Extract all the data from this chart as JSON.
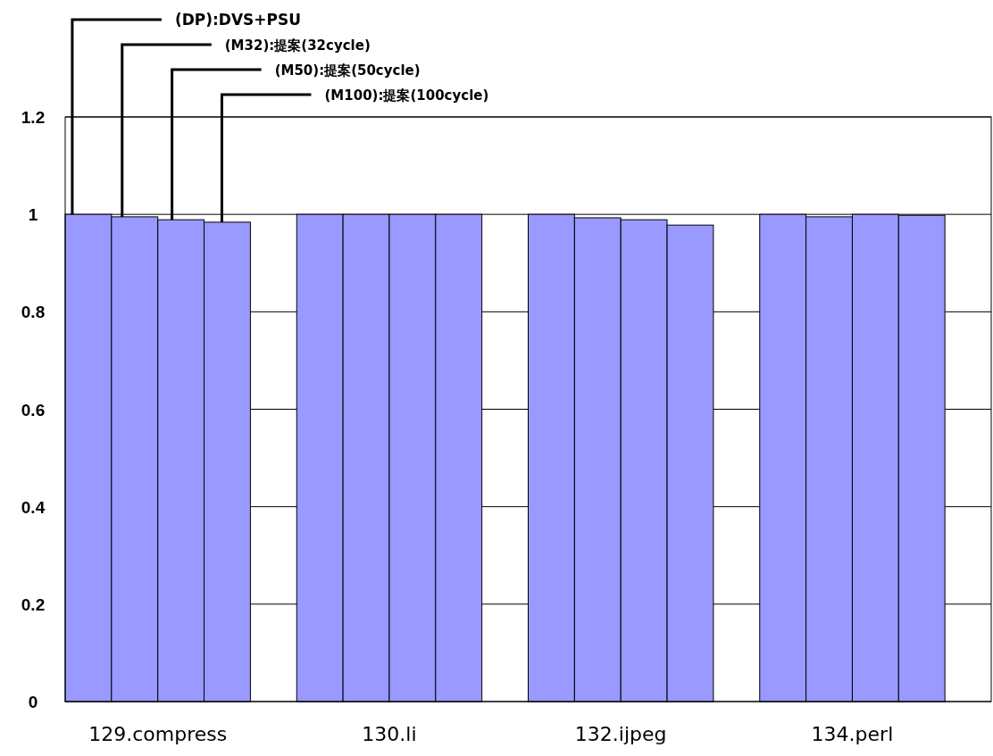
{
  "chart_data": {
    "type": "bar",
    "categories": [
      "129.compress",
      "130.li",
      "132.ijpeg",
      "134.perl"
    ],
    "series": [
      {
        "name": "(DP):DVS+PSU",
        "color": "#9999ff",
        "values": [
          1.0,
          1.0,
          1.0,
          1.0
        ]
      },
      {
        "name": "(M32):提案(32cycle)",
        "color": "#9999ff",
        "values": [
          0.995,
          1.0,
          0.993,
          0.995
        ]
      },
      {
        "name": "(M50):提案(50cycle)",
        "color": "#9999ff",
        "values": [
          0.989,
          1.0,
          0.989,
          1.0
        ]
      },
      {
        "name": "(M100):提案(100cycle)",
        "color": "#9999ff",
        "values": [
          0.984,
          1.0,
          0.978,
          0.998
        ]
      }
    ],
    "ylim": [
      0,
      1.2
    ],
    "yticks": [
      0,
      0.2,
      0.4,
      0.6,
      0.8,
      1,
      1.2
    ],
    "grid": "y",
    "legend": "top left"
  }
}
